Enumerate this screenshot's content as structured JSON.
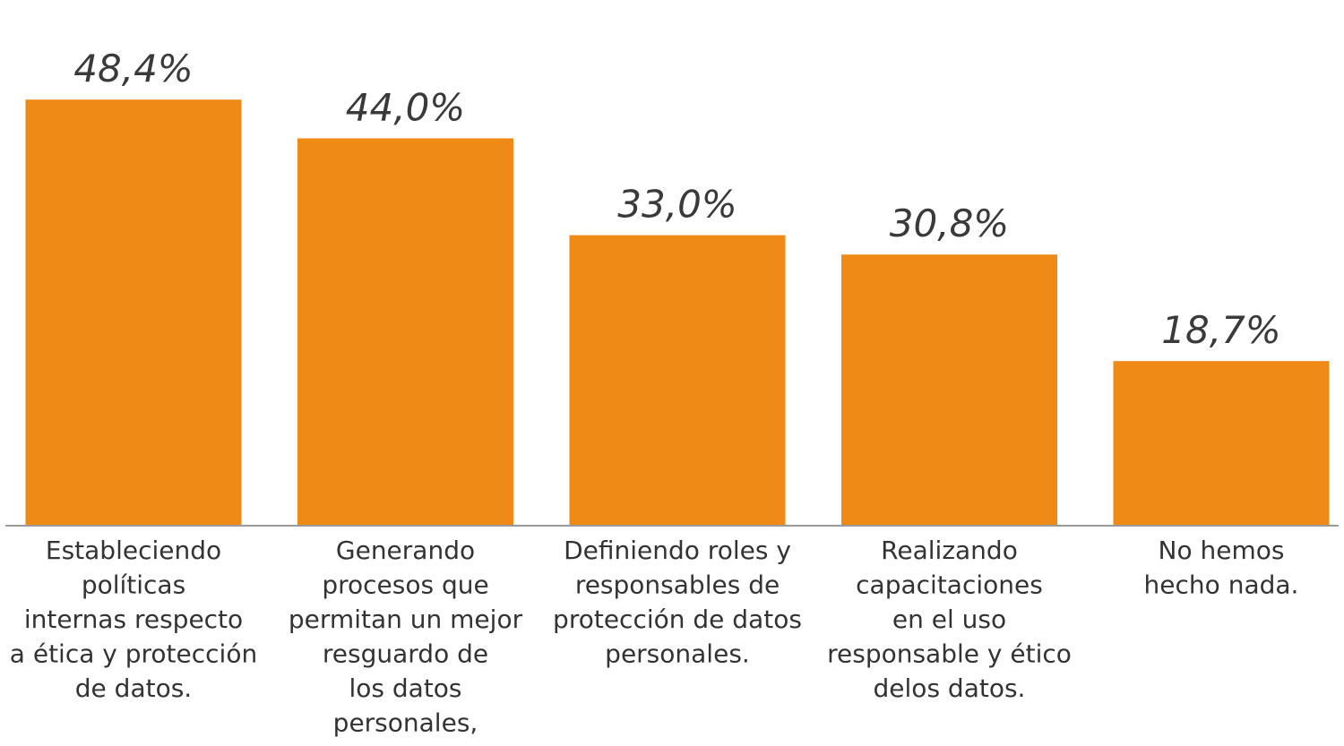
{
  "chart_data": {
    "type": "bar",
    "categories": [
      [
        "Estableciendo",
        "políticas",
        "internas respecto",
        "a ética y protección",
        "de datos."
      ],
      [
        "Generando",
        "procesos que",
        "permitan un mejor",
        "resguardo de",
        "los datos",
        "personales,"
      ],
      [
        "Definiendo roles y",
        "responsables de",
        "protección de datos",
        "personales."
      ],
      [
        "Realizando",
        "capacitaciones",
        "en el uso",
        "responsable y ético",
        "delos datos."
      ],
      [
        "No hemos",
        "hecho nada."
      ]
    ],
    "values": [
      48.4,
      44.0,
      33.0,
      30.8,
      18.7
    ],
    "value_labels": [
      "48,4%",
      "44,0%",
      "33,0%",
      "30,8%",
      "18,7%"
    ],
    "ylim": [
      0,
      50
    ],
    "grid": false,
    "colors": {
      "bar": "#F08A16",
      "axis": "#9a9a9a",
      "value_text": "#3a3a3a",
      "category_text": "#333333"
    }
  }
}
